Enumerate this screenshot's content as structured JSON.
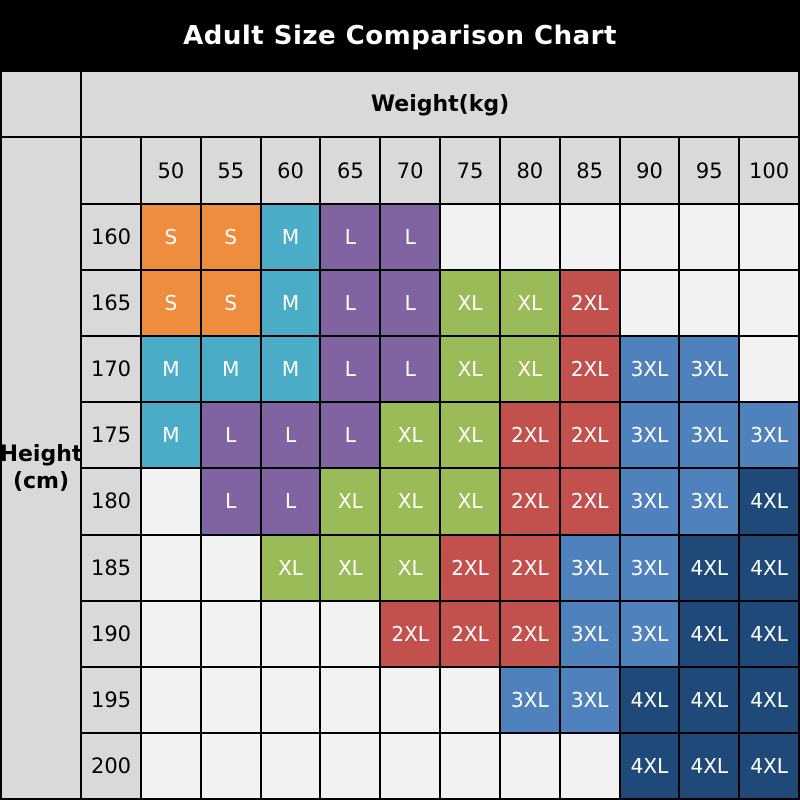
{
  "title": "Adult Size Comparison Chart",
  "axes": {
    "weight_label": "Weight(kg)",
    "height_label_line1": "Height",
    "height_label_line2": "(cm)"
  },
  "palette": {
    "page_bg": "#000000",
    "grid_line": "#000000",
    "title_text": "#FFFFFF",
    "header_bg": "#D9D9D9",
    "header_text": "#000000",
    "empty_cell_bg": "#F2F2F2",
    "cell_text": "#FFFFFF"
  },
  "size_colors": {
    "S": "#EF8D3E",
    "M": "#4AACC6",
    "L": "#8064A2",
    "XL": "#9BBB59",
    "2XL": "#C2514E",
    "3XL": "#4F81BD",
    "4XL": "#1F4979"
  },
  "chart_data": {
    "type": "table",
    "title": "Adult Size Comparison Chart",
    "x_label": "Weight(kg)",
    "y_label": "Height (cm)",
    "x_categories": [
      50,
      55,
      60,
      65,
      70,
      75,
      80,
      85,
      90,
      95,
      100
    ],
    "y_categories": [
      160,
      165,
      170,
      175,
      180,
      185,
      190,
      195,
      200
    ],
    "empty_value": "",
    "values": [
      [
        "S",
        "S",
        "M",
        "L",
        "L",
        "",
        "",
        "",
        "",
        "",
        ""
      ],
      [
        "S",
        "S",
        "M",
        "L",
        "L",
        "XL",
        "XL",
        "2XL",
        "",
        "",
        ""
      ],
      [
        "M",
        "M",
        "M",
        "L",
        "L",
        "XL",
        "XL",
        "2XL",
        "3XL",
        "3XL",
        ""
      ],
      [
        "M",
        "L",
        "L",
        "L",
        "XL",
        "XL",
        "2XL",
        "2XL",
        "3XL",
        "3XL",
        "3XL"
      ],
      [
        "",
        "L",
        "L",
        "XL",
        "XL",
        "XL",
        "2XL",
        "2XL",
        "3XL",
        "3XL",
        "4XL"
      ],
      [
        "",
        "",
        "XL",
        "XL",
        "XL",
        "2XL",
        "2XL",
        "3XL",
        "3XL",
        "4XL",
        "4XL"
      ],
      [
        "",
        "",
        "",
        "",
        "2XL",
        "2XL",
        "2XL",
        "3XL",
        "3XL",
        "4XL",
        "4XL"
      ],
      [
        "",
        "",
        "",
        "",
        "",
        "",
        "3XL",
        "3XL",
        "4XL",
        "4XL",
        "4XL"
      ],
      [
        "",
        "",
        "",
        "",
        "",
        "",
        "",
        "",
        "4XL",
        "4XL",
        "4XL"
      ]
    ]
  }
}
